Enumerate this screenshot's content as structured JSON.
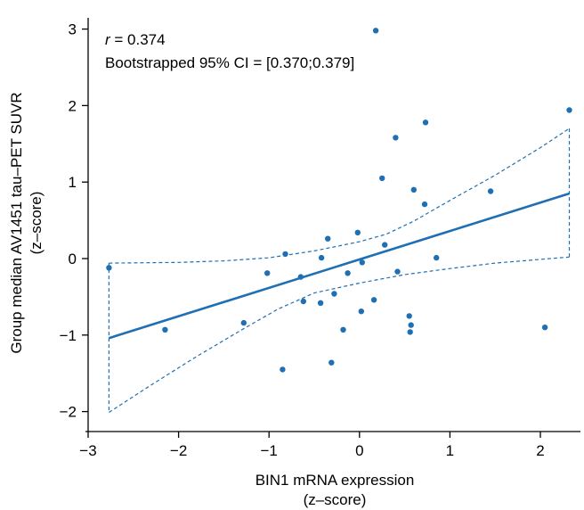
{
  "chart_data": {
    "type": "scatter",
    "xlabel_lines": [
      "BIN1 mRNA expression",
      "(z–score)"
    ],
    "ylabel_lines": [
      "Group median AV1451 tau–PET SUVR",
      "(z–score)"
    ],
    "xlim": [
      -3,
      2.5
    ],
    "ylim": [
      -2.25,
      3.2
    ],
    "xticks": [
      -3,
      -2,
      -1,
      0,
      1,
      2
    ],
    "yticks": [
      -2,
      -1,
      0,
      1,
      2,
      3
    ],
    "xtick_labels": [
      "−3",
      "−2",
      "−1",
      "0",
      "1",
      "2"
    ],
    "ytick_labels": [
      "−2",
      "−1",
      "0",
      "1",
      "2",
      "3"
    ],
    "grid": false,
    "legend": "none",
    "annotations": {
      "r_symbol": "r",
      "r_value": " = 0.374",
      "ci_text": "Bootstrapped 95% CI = [0.370;0.379]"
    },
    "colors": {
      "series": "#1f6fb4"
    },
    "points": [
      {
        "x": -2.77,
        "y": -0.12
      },
      {
        "x": -2.15,
        "y": -0.93
      },
      {
        "x": -1.28,
        "y": -0.84
      },
      {
        "x": -1.02,
        "y": -0.19
      },
      {
        "x": -0.85,
        "y": -1.45
      },
      {
        "x": -0.82,
        "y": 0.06
      },
      {
        "x": -0.65,
        "y": -0.24
      },
      {
        "x": -0.62,
        "y": -0.56
      },
      {
        "x": -0.43,
        "y": -0.58
      },
      {
        "x": -0.42,
        "y": 0.01
      },
      {
        "x": -0.35,
        "y": 0.26
      },
      {
        "x": -0.31,
        "y": -1.36
      },
      {
        "x": -0.28,
        "y": -0.46
      },
      {
        "x": -0.18,
        "y": -0.93
      },
      {
        "x": -0.13,
        "y": -0.19
      },
      {
        "x": -0.02,
        "y": 0.34
      },
      {
        "x": 0.02,
        "y": -0.69
      },
      {
        "x": 0.03,
        "y": -0.05
      },
      {
        "x": 0.16,
        "y": -0.54
      },
      {
        "x": 0.18,
        "y": 2.98
      },
      {
        "x": 0.25,
        "y": 1.05
      },
      {
        "x": 0.28,
        "y": 0.18
      },
      {
        "x": 0.4,
        "y": 1.58
      },
      {
        "x": 0.42,
        "y": -0.17
      },
      {
        "x": 0.55,
        "y": -0.75
      },
      {
        "x": 0.56,
        "y": -0.96
      },
      {
        "x": 0.57,
        "y": -0.87
      },
      {
        "x": 0.6,
        "y": 0.9
      },
      {
        "x": 0.72,
        "y": 0.71
      },
      {
        "x": 0.73,
        "y": 1.78
      },
      {
        "x": 0.85,
        "y": 0.01
      },
      {
        "x": 1.45,
        "y": 0.88
      },
      {
        "x": 2.05,
        "y": -0.9
      },
      {
        "x": 2.32,
        "y": 1.94
      }
    ],
    "regression_line": [
      {
        "x": -2.77,
        "y": -1.04
      },
      {
        "x": 2.32,
        "y": 0.85
      }
    ],
    "ci_upper": [
      {
        "x": -2.77,
        "y": -0.06
      },
      {
        "x": -2.0,
        "y": -0.05
      },
      {
        "x": -1.5,
        "y": -0.03
      },
      {
        "x": -1.0,
        "y": 0.01
      },
      {
        "x": -0.5,
        "y": 0.1
      },
      {
        "x": 0.0,
        "y": 0.22
      },
      {
        "x": 0.3,
        "y": 0.32
      },
      {
        "x": 0.6,
        "y": 0.49
      },
      {
        "x": 1.0,
        "y": 0.76
      },
      {
        "x": 1.5,
        "y": 1.09
      },
      {
        "x": 2.0,
        "y": 1.45
      },
      {
        "x": 2.32,
        "y": 1.7
      }
    ],
    "ci_lower": [
      {
        "x": -2.77,
        "y": -2.01
      },
      {
        "x": -2.3,
        "y": -1.65
      },
      {
        "x": -1.8,
        "y": -1.28
      },
      {
        "x": -1.3,
        "y": -0.93
      },
      {
        "x": -0.9,
        "y": -0.66
      },
      {
        "x": -0.5,
        "y": -0.45
      },
      {
        "x": 0.0,
        "y": -0.32
      },
      {
        "x": 0.5,
        "y": -0.21
      },
      {
        "x": 1.0,
        "y": -0.13
      },
      {
        "x": 1.5,
        "y": -0.06
      },
      {
        "x": 2.0,
        "y": -0.01
      },
      {
        "x": 2.32,
        "y": 0.02
      }
    ]
  }
}
